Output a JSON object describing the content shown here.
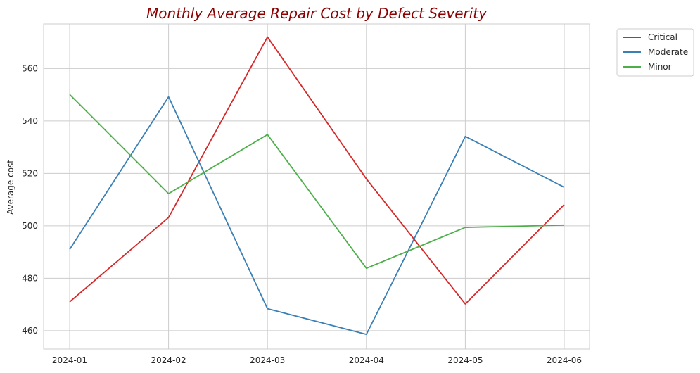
{
  "chart_data": {
    "type": "line",
    "title": "Monthly Average Repair Cost by Defect Severity",
    "xlabel": "",
    "ylabel": "Average cost",
    "categories": [
      "2024-01",
      "2024-02",
      "2024-03",
      "2024-04",
      "2024-05",
      "2024-06"
    ],
    "ylim": [
      453,
      577
    ],
    "yticks": [
      460,
      480,
      500,
      520,
      540,
      560
    ],
    "grid": true,
    "legend_position": "outside-top-right",
    "series": [
      {
        "name": "Critical",
        "color": "#d62728",
        "values": [
          471.0,
          503.2,
          572.0,
          517.9,
          470.2,
          508.1
        ]
      },
      {
        "name": "Moderate",
        "color": "#3a7fb5",
        "values": [
          491.0,
          549.2,
          468.4,
          458.6,
          534.1,
          514.7
        ]
      },
      {
        "name": "Minor",
        "color": "#4daf4a",
        "values": [
          550.1,
          512.3,
          534.8,
          483.8,
          499.4,
          500.3
        ]
      }
    ]
  }
}
